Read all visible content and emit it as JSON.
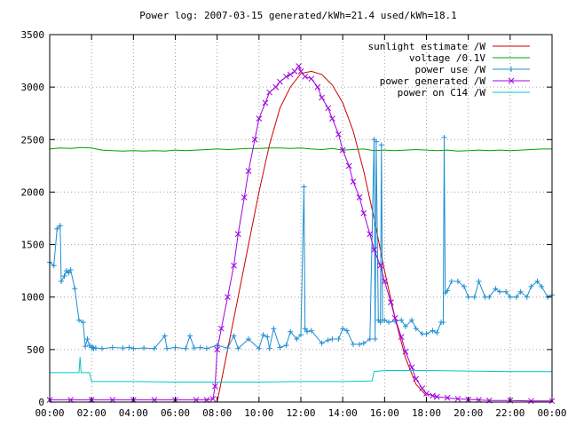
{
  "chart_data": {
    "type": "line",
    "title": "Power log: 2007-03-15 generated/kWh=21.4 used/kWh=18.1",
    "xlabel": "",
    "ylabel": "",
    "ylim": [
      0,
      3500
    ],
    "x_ticks": [
      "00:00",
      "02:00",
      "04:00",
      "06:00",
      "08:00",
      "10:00",
      "12:00",
      "14:00",
      "16:00",
      "18:00",
      "20:00",
      "22:00",
      "00:00"
    ],
    "y_ticks": [
      "0",
      "500",
      "1000",
      "1500",
      "2000",
      "2500",
      "3000",
      "3500"
    ],
    "grid": true,
    "legend_position": "top-right",
    "series": [
      {
        "name": "sunlight estimate /W",
        "color": "#cc0000",
        "x": [
          8.0,
          8.5,
          9.0,
          9.5,
          10.0,
          10.5,
          11.0,
          11.5,
          12.0,
          12.5,
          13.0,
          13.5,
          14.0,
          14.5,
          15.0,
          15.5,
          16.0,
          16.5,
          17.0,
          17.5,
          18.0
        ],
        "y": [
          0,
          500,
          1000,
          1500,
          2000,
          2450,
          2800,
          3000,
          3130,
          3150,
          3120,
          3020,
          2850,
          2580,
          2200,
          1750,
          1250,
          800,
          420,
          170,
          60
        ]
      },
      {
        "name": "voltage /0.1V",
        "color": "#00a000",
        "x": [
          0,
          0.5,
          1.0,
          1.5,
          2.0,
          2.5,
          3.0,
          3.5,
          4.0,
          4.5,
          5.0,
          5.5,
          6.0,
          6.5,
          7.0,
          7.5,
          8.0,
          8.5,
          9.0,
          9.5,
          10.0,
          10.5,
          11.0,
          11.5,
          12.0,
          12.5,
          13.0,
          13.5,
          14.0,
          14.5,
          15.0,
          15.5,
          16.0,
          16.5,
          17.0,
          17.5,
          18.0,
          18.5,
          19.0,
          19.5,
          20.0,
          20.5,
          21.0,
          21.5,
          22.0,
          22.5,
          23.0,
          23.5,
          24.0
        ],
        "y": [
          2410,
          2420,
          2415,
          2425,
          2420,
          2400,
          2395,
          2390,
          2395,
          2390,
          2395,
          2390,
          2400,
          2395,
          2400,
          2405,
          2410,
          2405,
          2410,
          2415,
          2415,
          2420,
          2420,
          2415,
          2420,
          2410,
          2405,
          2415,
          2400,
          2405,
          2410,
          2395,
          2400,
          2395,
          2400,
          2405,
          2400,
          2395,
          2400,
          2390,
          2395,
          2400,
          2395,
          2400,
          2395,
          2400,
          2405,
          2410,
          2410
        ]
      },
      {
        "name": "power use /W",
        "color": "#1e8fd0",
        "x": [
          0.0,
          0.2,
          0.35,
          0.5,
          0.55,
          0.7,
          0.8,
          0.9,
          1.0,
          1.2,
          1.4,
          1.6,
          1.7,
          1.8,
          1.9,
          2.0,
          2.05,
          2.1,
          2.2,
          2.5,
          3.0,
          3.5,
          3.8,
          4.0,
          4.5,
          5.0,
          5.5,
          5.6,
          6.0,
          6.5,
          6.7,
          6.9,
          7.2,
          7.5,
          8.0,
          8.5,
          8.8,
          9.0,
          9.5,
          10.0,
          10.2,
          10.4,
          10.5,
          10.7,
          11.0,
          11.3,
          11.5,
          11.8,
          12.0,
          12.15,
          12.2,
          12.3,
          12.5,
          13.0,
          13.3,
          13.5,
          13.8,
          14.0,
          14.2,
          14.5,
          14.8,
          15.0,
          15.3,
          15.5,
          15.55,
          15.6,
          15.7,
          15.8,
          15.85,
          15.9,
          16.0,
          16.2,
          16.5,
          16.8,
          17.0,
          17.3,
          17.5,
          17.8,
          18.0,
          18.3,
          18.5,
          18.7,
          18.8,
          18.85,
          18.9,
          19.0,
          19.2,
          19.5,
          19.8,
          20.0,
          20.3,
          20.5,
          20.8,
          21.0,
          21.3,
          21.5,
          21.8,
          22.0,
          22.3,
          22.5,
          22.8,
          23.0,
          23.3,
          23.5,
          23.8,
          24.0
        ],
        "y": [
          1330,
          1300,
          1650,
          1680,
          1150,
          1200,
          1250,
          1230,
          1260,
          1080,
          780,
          760,
          530,
          600,
          540,
          520,
          520,
          510,
          515,
          510,
          520,
          515,
          520,
          510,
          515,
          510,
          630,
          510,
          520,
          510,
          630,
          515,
          520,
          510,
          540,
          515,
          630,
          510,
          600,
          510,
          640,
          620,
          510,
          700,
          520,
          540,
          670,
          600,
          640,
          2050,
          700,
          670,
          680,
          560,
          590,
          600,
          600,
          700,
          680,
          550,
          550,
          560,
          600,
          2500,
          600,
          2480,
          780,
          760,
          2450,
          780,
          780,
          760,
          770,
          780,
          720,
          780,
          700,
          650,
          650,
          680,
          660,
          760,
          760,
          2520,
          1040,
          1060,
          1150,
          1150,
          1100,
          1000,
          1000,
          1150,
          1000,
          1000,
          1080,
          1050,
          1050,
          1000,
          1000,
          1050,
          1000,
          1100,
          1150,
          1100,
          1000,
          1020
        ]
      },
      {
        "name": "power generated /W",
        "color": "#a000e0",
        "x": [
          0,
          1,
          2,
          3,
          4,
          5,
          6,
          7,
          7.5,
          7.8,
          7.9,
          8.0,
          8.2,
          8.5,
          8.8,
          9.0,
          9.3,
          9.5,
          9.8,
          10.0,
          10.3,
          10.5,
          10.8,
          11.0,
          11.3,
          11.5,
          11.7,
          11.9,
          12.0,
          12.2,
          12.5,
          12.8,
          13.0,
          13.3,
          13.5,
          13.8,
          14.0,
          14.3,
          14.5,
          14.8,
          15.0,
          15.3,
          15.5,
          15.8,
          16.0,
          16.3,
          16.5,
          16.8,
          17.0,
          17.3,
          17.5,
          17.8,
          18.0,
          18.3,
          18.5,
          19.0,
          19.5,
          20.0,
          20.5,
          21.0,
          22.0,
          23.0,
          24.0
        ],
        "y": [
          20,
          20,
          20,
          20,
          20,
          20,
          20,
          20,
          20,
          30,
          150,
          500,
          700,
          1000,
          1300,
          1600,
          1950,
          2200,
          2500,
          2700,
          2850,
          2950,
          3000,
          3050,
          3100,
          3120,
          3150,
          3200,
          3150,
          3100,
          3080,
          3000,
          2900,
          2800,
          2700,
          2550,
          2400,
          2250,
          2100,
          1950,
          1800,
          1600,
          1450,
          1300,
          1150,
          950,
          800,
          620,
          480,
          330,
          220,
          130,
          80,
          60,
          50,
          40,
          30,
          25,
          20,
          15,
          15,
          10,
          10
        ]
      },
      {
        "name": "power on C14 /W",
        "color": "#00c8c8",
        "x": [
          0.0,
          1.4,
          1.45,
          1.5,
          1.9,
          2.0,
          4.0,
          6.0,
          8.0,
          10.0,
          12.0,
          14.0,
          15.4,
          15.5,
          16.0,
          18.0,
          20.0,
          22.0,
          24.0
        ],
        "y": [
          280,
          280,
          430,
          280,
          280,
          195,
          195,
          190,
          190,
          190,
          195,
          195,
          200,
          290,
          300,
          300,
          295,
          290,
          290
        ]
      }
    ]
  }
}
